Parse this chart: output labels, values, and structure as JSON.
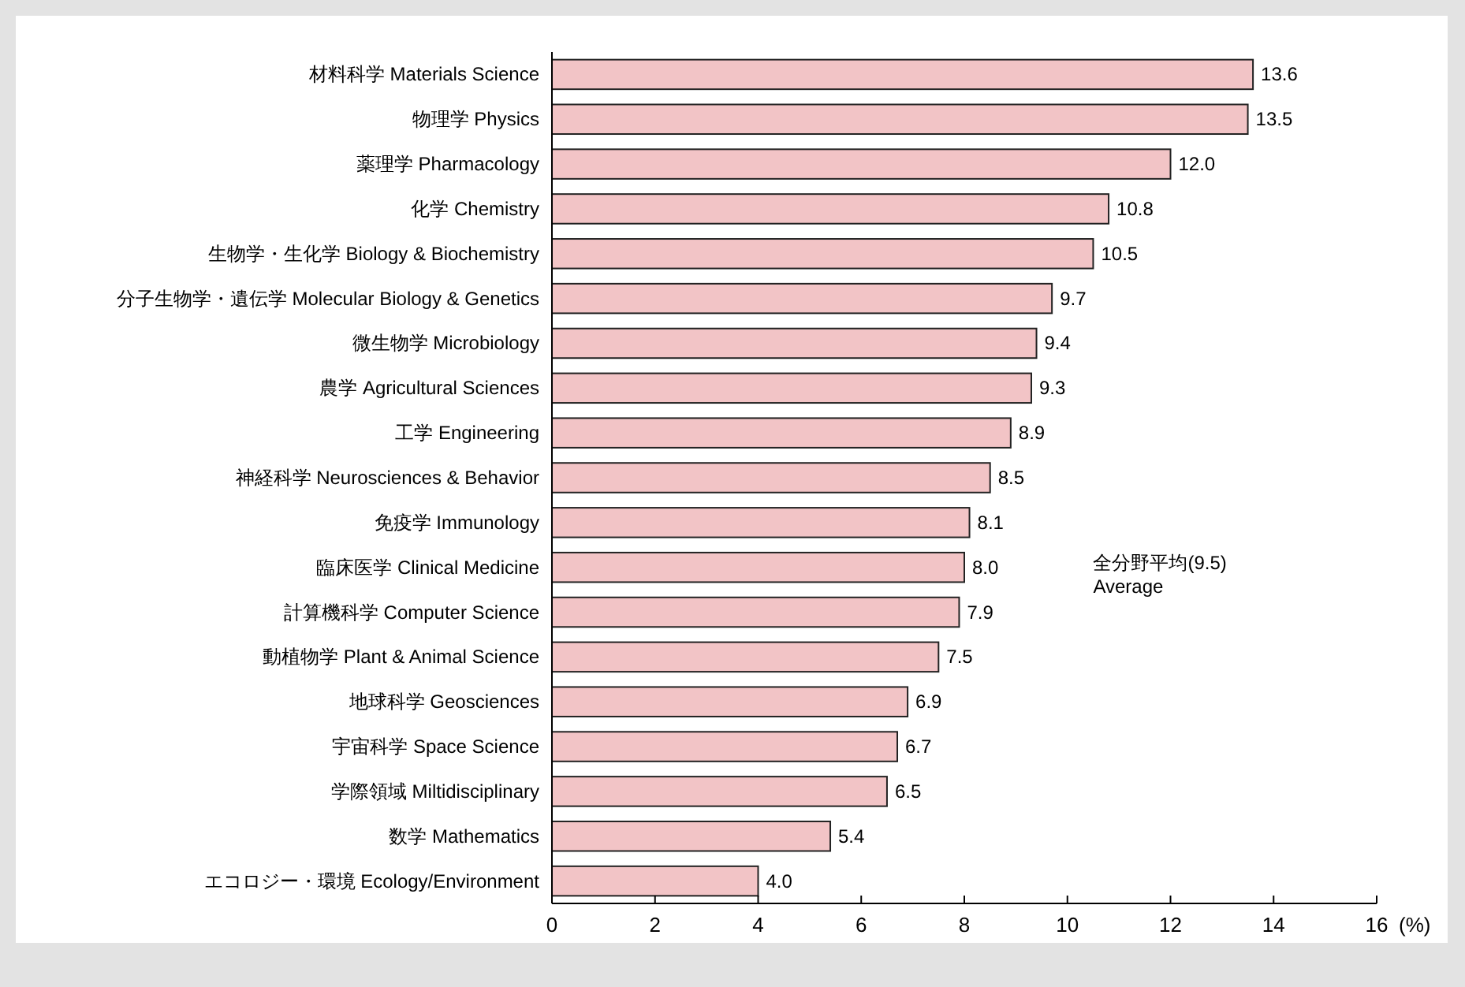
{
  "chart_data": {
    "type": "bar",
    "orientation": "horizontal",
    "xlabel": "(%)",
    "categories": [
      "材料科学 Materials Science",
      "物理学 Physics",
      "薬理学 Pharmacology",
      "化学 Chemistry",
      "生物学・生化学 Biology & Biochemistry",
      "分子生物学・遺伝学 Molecular Biology & Genetics",
      "微生物学 Microbiology",
      "農学 Agricultural Sciences",
      "工学 Engineering",
      "神経科学 Neurosciences & Behavior",
      "免疫学 Immunology",
      "臨床医学 Clinical Medicine",
      "計算機科学 Computer Science",
      "動植物学 Plant & Animal Science",
      "地球科学 Geosciences",
      "宇宙科学 Space Science",
      "学際領域 Miltidisciplinary",
      "数学 Mathematics",
      "エコロジー・環境 Ecology/Environment"
    ],
    "values": [
      13.6,
      13.5,
      12.0,
      10.8,
      10.5,
      9.7,
      9.4,
      9.3,
      8.9,
      8.5,
      8.1,
      8.0,
      7.9,
      7.5,
      6.9,
      6.7,
      6.5,
      5.4,
      4.0
    ],
    "value_labels": [
      "13.6",
      "13.5",
      "12.0",
      "10.8",
      "10.5",
      "9.7",
      "9.4",
      "9.3",
      "8.9",
      "8.5",
      "8.1",
      "8.0",
      "7.9",
      "7.5",
      "6.9",
      "6.7",
      "6.5",
      "5.4",
      "4.0"
    ],
    "color": "#f2c4c6",
    "xlim": [
      0,
      16
    ],
    "xticks": [
      0,
      2,
      4,
      6,
      8,
      10,
      12,
      14,
      16
    ],
    "annotations": [
      "全分野平均(9.5)\nAverage"
    ]
  }
}
